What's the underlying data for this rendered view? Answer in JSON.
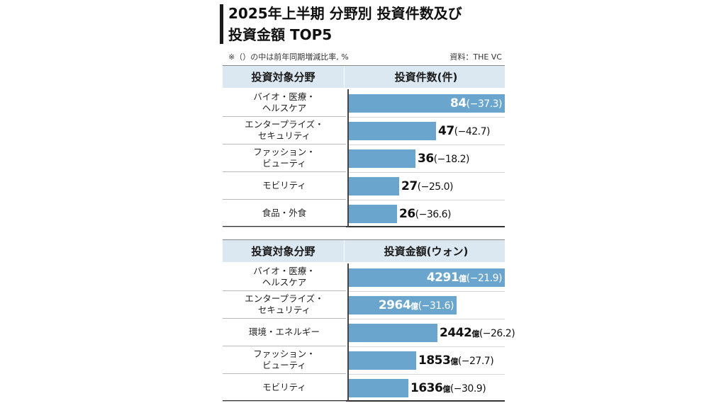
{
  "title_line1": "2025年上半期 分野別 投資件数及び",
  "title_line2": "投資金額 TOP5",
  "note": "※（）の中は前年同期増減比率, %",
  "source": "資料：THE VC",
  "chart_data": [
    {
      "type": "bar",
      "orientation": "horizontal",
      "category_header": "投資対象分野",
      "value_header": "投資件数(件)",
      "categories": [
        [
          "バイオ・医療・",
          "ヘルスケア"
        ],
        [
          "エンタープライズ・",
          "セキュリティ"
        ],
        [
          "ファッション・",
          "ビューティ"
        ],
        [
          "モビリティ"
        ],
        [
          "食品・外食"
        ]
      ],
      "values": [
        84,
        47,
        36,
        27,
        26
      ],
      "value_labels": [
        "84",
        "47",
        "36",
        "27",
        "26"
      ],
      "unit": "",
      "changes": [
        "(−37.3)",
        "(−42.7)",
        "(−18.2)",
        "(−25.0)",
        "(−36.6)"
      ],
      "xlim": [
        0,
        84
      ],
      "bar_color": "#6aa5cd"
    },
    {
      "type": "bar",
      "orientation": "horizontal",
      "category_header": "投資対象分野",
      "value_header": "投資金額(ウォン)",
      "categories": [
        [
          "バイオ・医療・",
          "ヘルスケア"
        ],
        [
          "エンタープライズ・",
          "セキュリティ"
        ],
        [
          "環境・エネルギー"
        ],
        [
          "ファッション・",
          "ビューティ"
        ],
        [
          "モビリティ"
        ]
      ],
      "values": [
        4291,
        2964,
        2442,
        1853,
        1636
      ],
      "value_labels": [
        "4291",
        "2964",
        "2442",
        "1853",
        "1636"
      ],
      "unit": "億",
      "changes": [
        "(−21.9)",
        "(−31.6)",
        "(−26.2)",
        "(−27.7)",
        "(−30.9)"
      ],
      "xlim": [
        0,
        4291
      ],
      "bar_color": "#6aa5cd"
    }
  ]
}
